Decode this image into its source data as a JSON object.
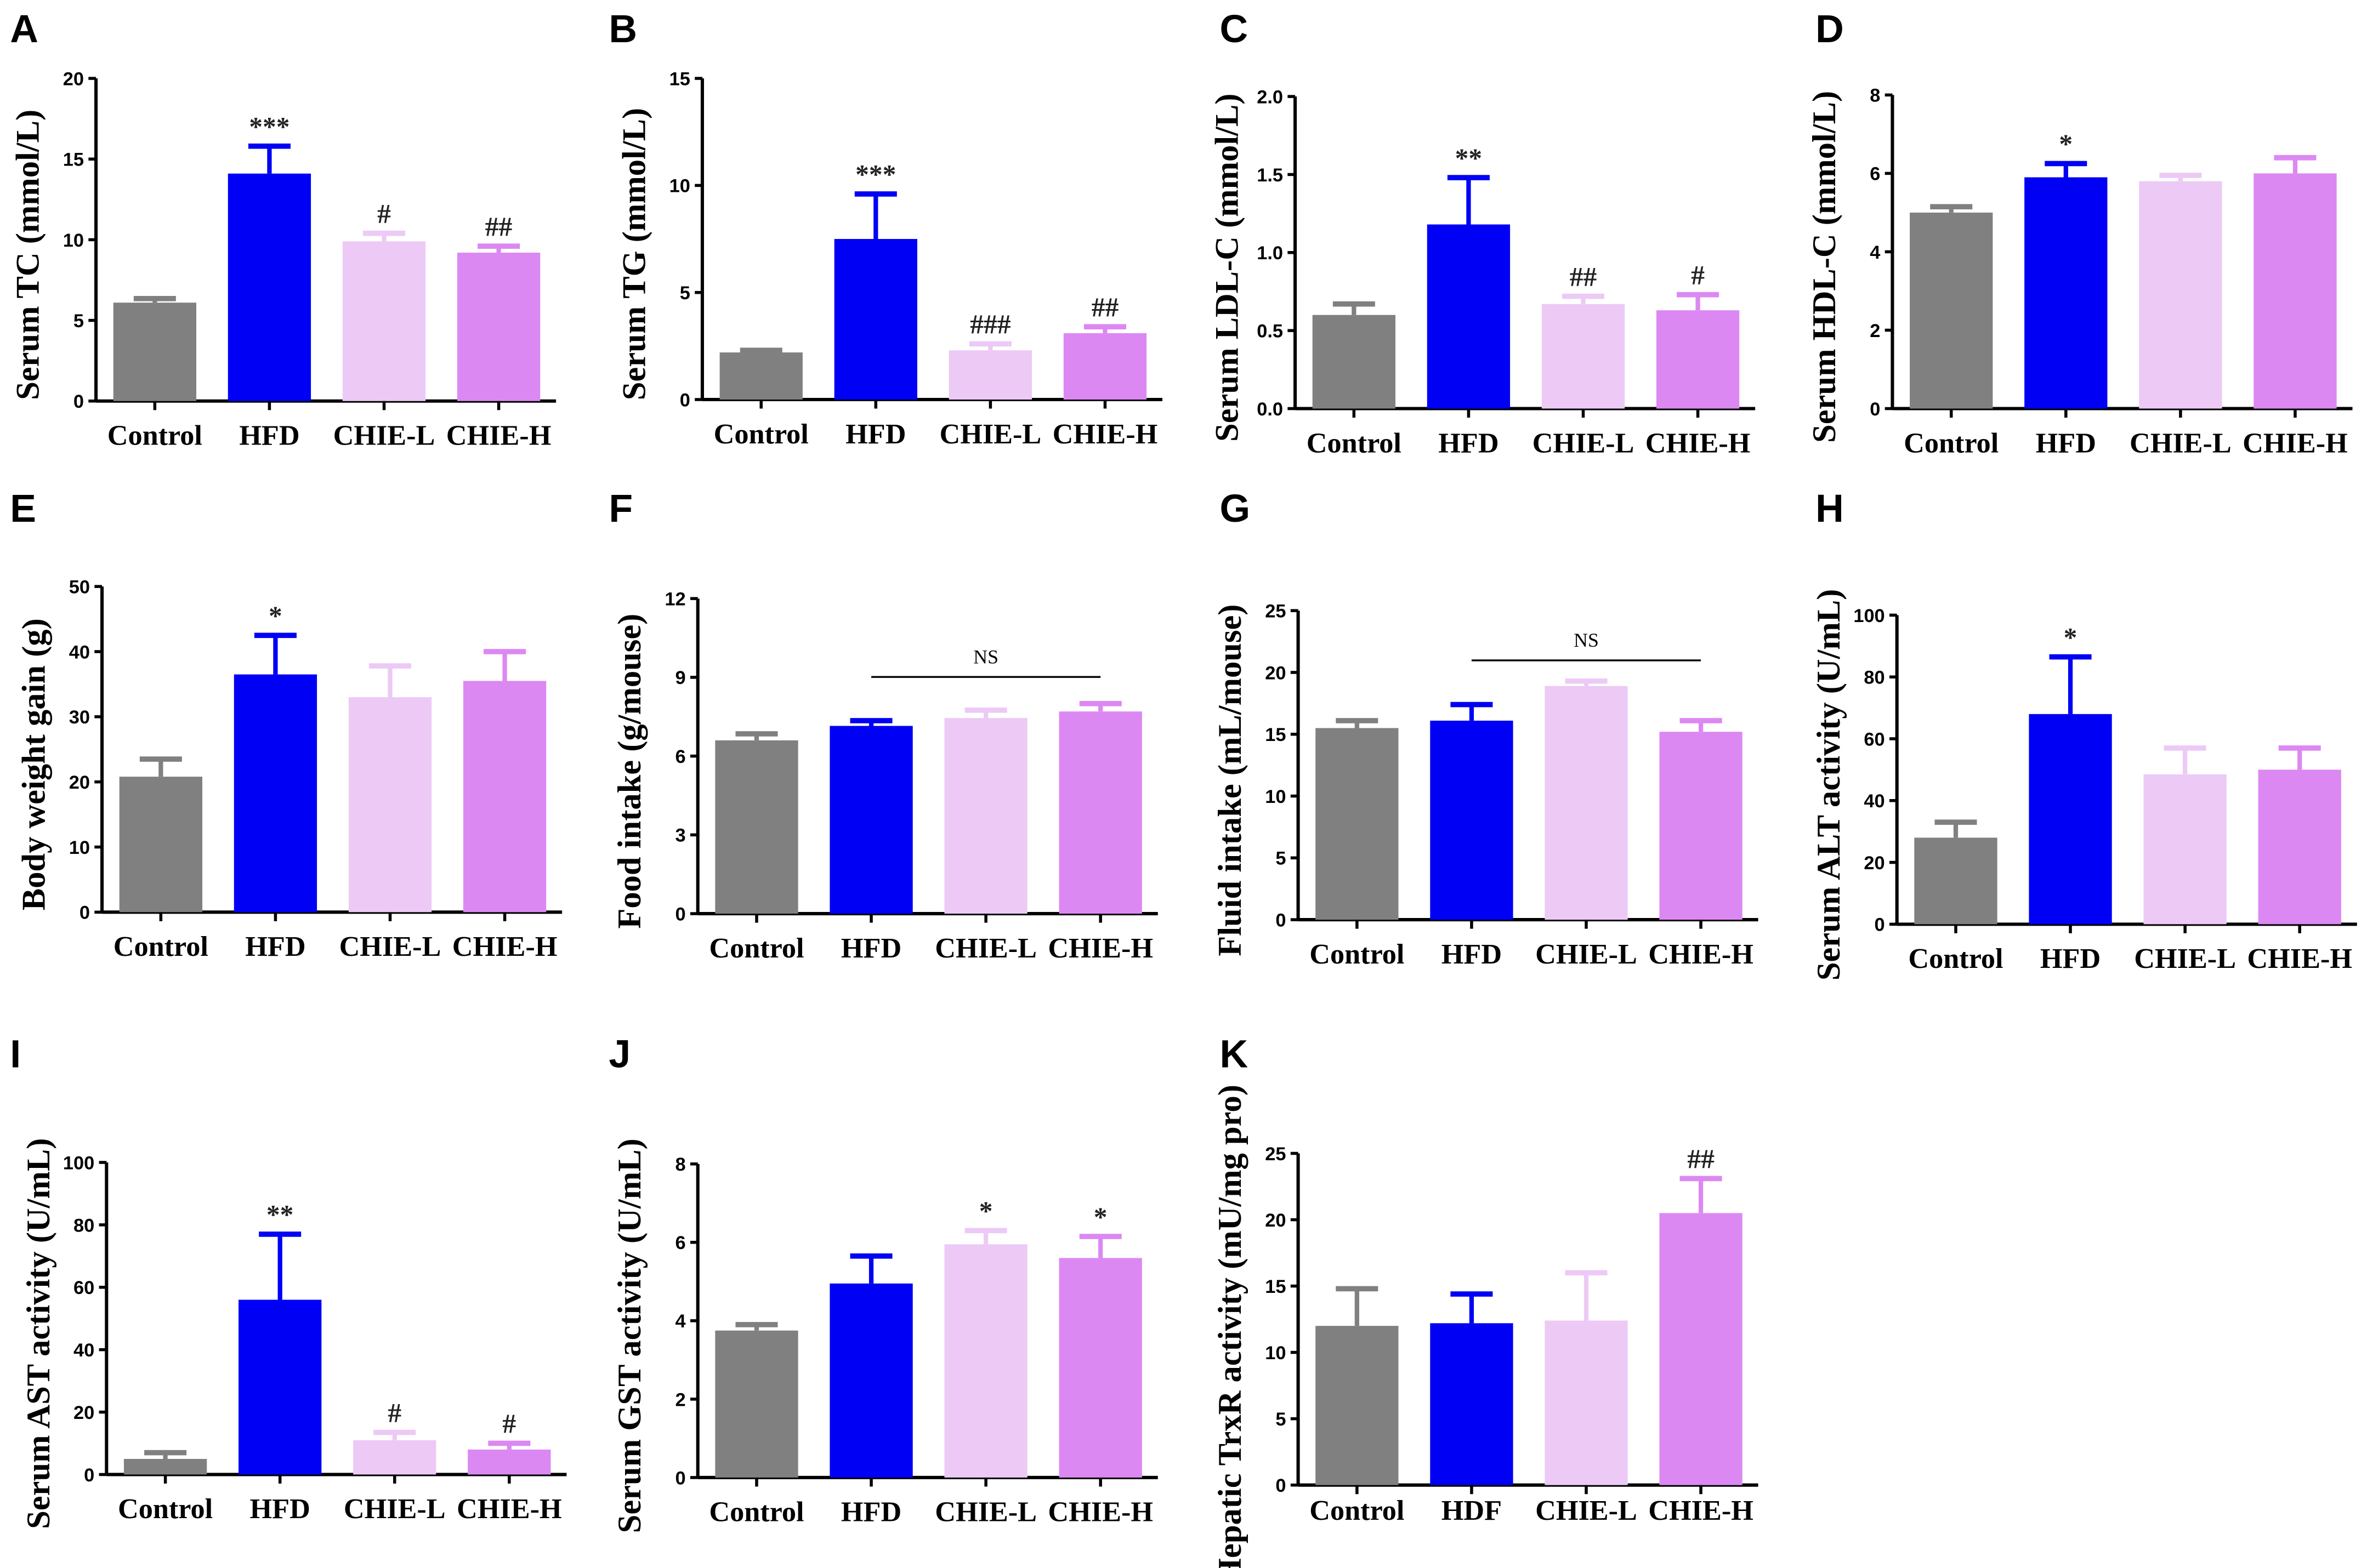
{
  "colors": {
    "Control": "#808080",
    "HFD": "#0000f5",
    "CHIE-L": "#eccaf5",
    "CHIE-H": "#dc88f2"
  },
  "chart_data": [
    {
      "panel": "A",
      "type": "bar",
      "ylabel": "Serum TC (mmol/L)",
      "categories": [
        "Control",
        "HFD",
        "CHIE-L",
        "CHIE-H"
      ],
      "values": [
        6.1,
        14.1,
        9.9,
        9.2
      ],
      "errors": [
        0.25,
        1.7,
        0.5,
        0.4
      ],
      "ylim": [
        0,
        20
      ],
      "yticks": [
        "0",
        "5",
        "10",
        "15",
        "20"
      ],
      "annotations": [
        "",
        "***",
        "#",
        "##"
      ]
    },
    {
      "panel": "B",
      "type": "bar",
      "ylabel": "Serum TG (mmol/L)",
      "categories": [
        "Control",
        "HFD",
        "CHIE-L",
        "CHIE-H"
      ],
      "values": [
        2.2,
        7.5,
        2.3,
        3.1
      ],
      "errors": [
        0.1,
        2.1,
        0.3,
        0.3
      ],
      "ylim": [
        0,
        15
      ],
      "yticks": [
        "0",
        "5",
        "10",
        "15"
      ],
      "annotations": [
        "",
        "***",
        "###",
        "##"
      ]
    },
    {
      "panel": "C",
      "type": "bar",
      "ylabel": "Serum LDL-C (mmol/L)",
      "categories": [
        "Control",
        "HFD",
        "CHIE-L",
        "CHIE-H"
      ],
      "values": [
        0.6,
        1.18,
        0.67,
        0.63
      ],
      "errors": [
        0.07,
        0.3,
        0.05,
        0.1
      ],
      "ylim": [
        0,
        2
      ],
      "yticks": [
        "0.0",
        "0.5",
        "1.0",
        "1.5",
        "2.0"
      ],
      "annotations": [
        "",
        "**",
        "##",
        "#"
      ]
    },
    {
      "panel": "D",
      "type": "bar",
      "ylabel": "Serum HDL-C (mmol/L)",
      "categories": [
        "Control",
        "HFD",
        "CHIE-L",
        "CHIE-H"
      ],
      "values": [
        5.0,
        5.9,
        5.8,
        6.0
      ],
      "errors": [
        0.15,
        0.35,
        0.15,
        0.4
      ],
      "ylim": [
        0,
        8
      ],
      "yticks": [
        "0",
        "2",
        "4",
        "6",
        "8"
      ],
      "annotations": [
        "",
        "*",
        "",
        ""
      ]
    },
    {
      "panel": "E",
      "type": "bar",
      "ylabel": "Body weight gain (g)",
      "categories": [
        "Control",
        "HFD",
        "CHIE-L",
        "CHIE-H"
      ],
      "values": [
        20.8,
        36.5,
        33.0,
        35.5
      ],
      "errors": [
        2.7,
        6.0,
        4.8,
        4.5
      ],
      "ylim": [
        0,
        50
      ],
      "yticks": [
        "0",
        "10",
        "20",
        "30",
        "40",
        "50"
      ],
      "annotations": [
        "",
        "*",
        "",
        ""
      ]
    },
    {
      "panel": "F",
      "type": "bar",
      "ylabel": "Food intake (g/mouse)",
      "categories": [
        "Control",
        "HFD",
        "CHIE-L",
        "CHIE-H"
      ],
      "values": [
        6.6,
        7.15,
        7.45,
        7.7
      ],
      "errors": [
        0.25,
        0.2,
        0.3,
        0.3
      ],
      "ylim": [
        0,
        12
      ],
      "yticks": [
        "0",
        "3",
        "6",
        "9",
        "12"
      ],
      "annotations": [
        "",
        "",
        "",
        ""
      ],
      "bracket": {
        "from": 1,
        "to": 3,
        "label": "NS"
      }
    },
    {
      "panel": "G",
      "type": "bar",
      "ylabel": "Fluid intake (mL/mouse)",
      "categories": [
        "Control",
        "HFD",
        "CHIE-L",
        "CHIE-H"
      ],
      "values": [
        15.5,
        16.1,
        18.9,
        15.2
      ],
      "errors": [
        0.6,
        1.3,
        0.4,
        0.9
      ],
      "ylim": [
        0,
        25
      ],
      "yticks": [
        "0",
        "5",
        "10",
        "15",
        "20",
        "25"
      ],
      "annotations": [
        "",
        "",
        "",
        ""
      ],
      "bracket": {
        "from": 1,
        "to": 3,
        "label": "NS"
      }
    },
    {
      "panel": "H",
      "type": "bar",
      "ylabel": "Serum ALT activity (U/mL)",
      "categories": [
        "Control",
        "HFD",
        "CHIE-L",
        "CHIE-H"
      ],
      "values": [
        28,
        68,
        48.5,
        50
      ],
      "errors": [
        5,
        18.5,
        8.5,
        7
      ],
      "ylim": [
        0,
        100
      ],
      "yticks": [
        "0",
        "20",
        "40",
        "60",
        "80",
        "100"
      ],
      "annotations": [
        "",
        "*",
        "",
        ""
      ]
    },
    {
      "panel": "I",
      "type": "bar",
      "ylabel": "Serum AST activity (U/mL)",
      "categories": [
        "Control",
        "HFD",
        "CHIE-L",
        "CHIE-H"
      ],
      "values": [
        5,
        56,
        11,
        8
      ],
      "errors": [
        2,
        21,
        2.5,
        2
      ],
      "ylim": [
        0,
        100
      ],
      "yticks": [
        "0",
        "20",
        "40",
        "60",
        "80",
        "100"
      ],
      "annotations": [
        "",
        "**",
        "#",
        "#"
      ]
    },
    {
      "panel": "J",
      "type": "bar",
      "ylabel": "Serum GST activity (U/mL)",
      "categories": [
        "Control",
        "HFD",
        "CHIE-L",
        "CHIE-H"
      ],
      "values": [
        3.75,
        4.95,
        5.95,
        5.6
      ],
      "errors": [
        0.15,
        0.7,
        0.35,
        0.55
      ],
      "ylim": [
        0,
        8
      ],
      "yticks": [
        "0",
        "2",
        "4",
        "6",
        "8"
      ],
      "annotations": [
        "",
        "",
        "*",
        "*"
      ]
    },
    {
      "panel": "K",
      "type": "bar",
      "ylabel": "Hepatic TrxR activity (mU/mg pro)",
      "categories": [
        "Control",
        "HDF",
        "CHIE-L",
        "CHIE-H"
      ],
      "values": [
        12.0,
        12.2,
        12.4,
        20.5
      ],
      "errors": [
        2.8,
        2.2,
        3.6,
        2.6
      ],
      "ylim": [
        0,
        25
      ],
      "yticks": [
        "0",
        "5",
        "10",
        "15",
        "20",
        "25"
      ],
      "annotations": [
        "",
        "",
        "",
        "##"
      ]
    }
  ]
}
